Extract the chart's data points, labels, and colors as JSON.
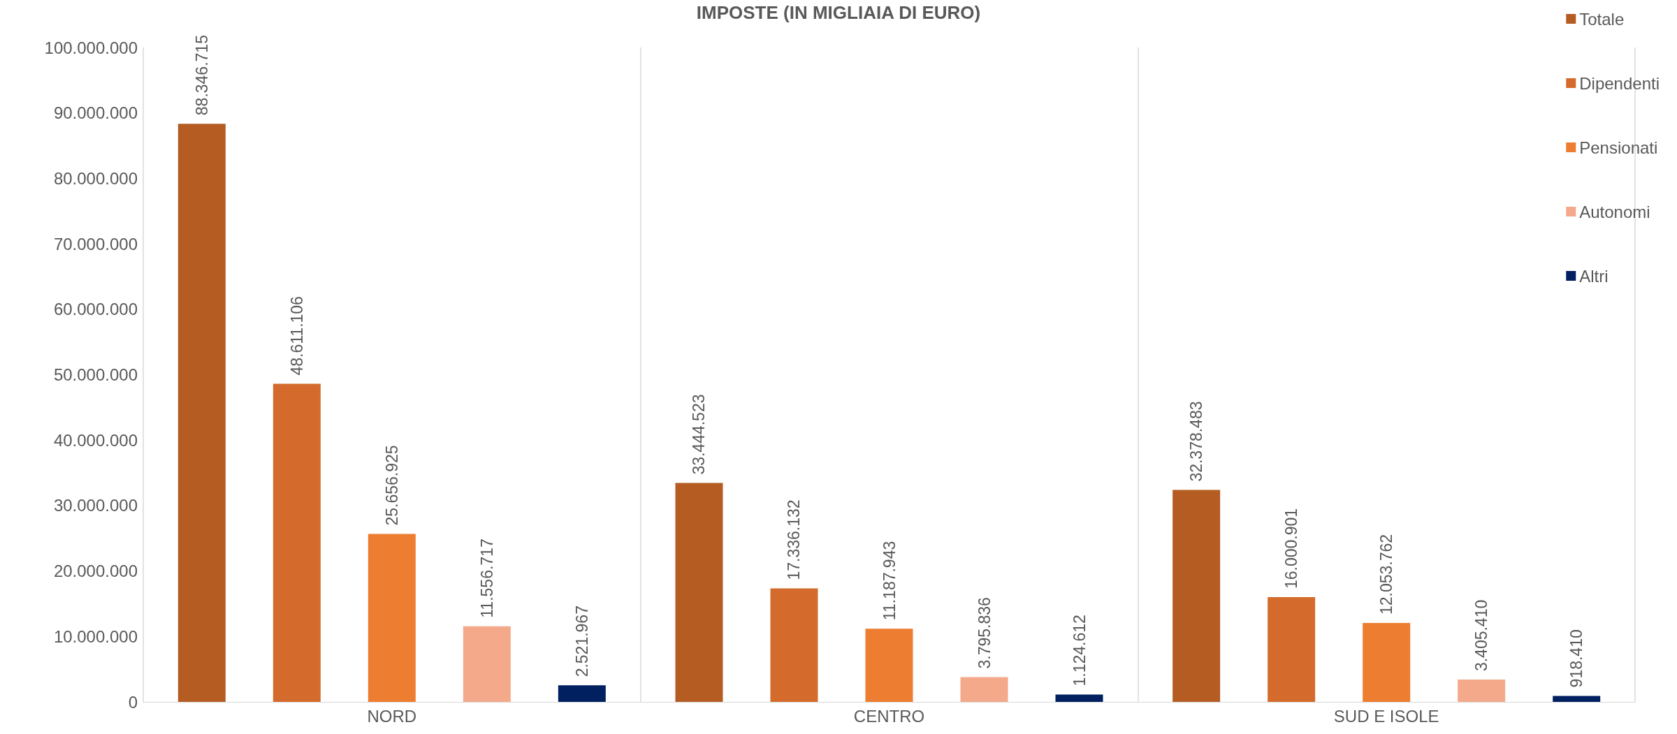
{
  "chart_data": {
    "type": "bar",
    "title": "IMPOSTE (IN MIGLIAIA DI EURO)",
    "categories": [
      "NORD",
      "CENTRO",
      "SUD E ISOLE"
    ],
    "series": [
      {
        "name": "Totale",
        "color": "#b45c22",
        "values": [
          88346715,
          33444523,
          32378483
        ],
        "value_labels": [
          "88.346.715",
          "33.444.523",
          "32.378.483"
        ]
      },
      {
        "name": "Dipendenti",
        "color": "#d46b2c",
        "values": [
          48611106,
          17336132,
          16000901
        ],
        "value_labels": [
          "48.611.106",
          "17.336.132",
          "16.000.901"
        ]
      },
      {
        "name": "Pensionati",
        "color": "#ed7d31",
        "values": [
          25656925,
          11187943,
          12053762
        ],
        "value_labels": [
          "25.656.925",
          "11.187.943",
          "12.053.762"
        ]
      },
      {
        "name": "Autonomi",
        "color": "#f4a98b",
        "values": [
          11556717,
          3795836,
          3405410
        ],
        "value_labels": [
          "11.556.717",
          "3.795.836",
          "3.405.410"
        ]
      },
      {
        "name": "Altri",
        "color": "#002060",
        "values": [
          2521967,
          1124612,
          918410
        ],
        "value_labels": [
          "2.521.967",
          "1.124.612",
          "918.410"
        ]
      }
    ],
    "ylim": [
      0,
      100000000
    ],
    "yticks": [
      {
        "value": 0,
        "label": "0"
      },
      {
        "value": 10000000,
        "label": "10.000.000"
      },
      {
        "value": 20000000,
        "label": "20.000.000"
      },
      {
        "value": 30000000,
        "label": "30.000.000"
      },
      {
        "value": 40000000,
        "label": "40.000.000"
      },
      {
        "value": 50000000,
        "label": "50.000.000"
      },
      {
        "value": 60000000,
        "label": "60.000.000"
      },
      {
        "value": 70000000,
        "label": "70.000.000"
      },
      {
        "value": 80000000,
        "label": "80.000.000"
      },
      {
        "value": 90000000,
        "label": "90.000.000"
      },
      {
        "value": 100000000,
        "label": "100.000.000"
      }
    ],
    "grid": "x",
    "legend": "top right"
  }
}
